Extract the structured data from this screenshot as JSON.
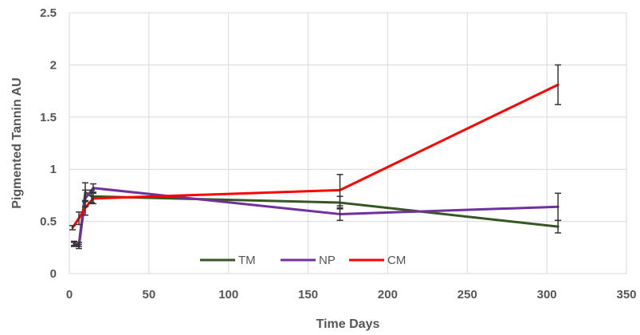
{
  "chart_data": {
    "type": "line",
    "xlabel": "Time Days",
    "ylabel": "Pigmented Tannin AU",
    "xlim": [
      0,
      350
    ],
    "ylim": [
      0,
      2.5
    ],
    "xticks": [
      0,
      50,
      100,
      150,
      200,
      250,
      300,
      350
    ],
    "yticks": [
      0,
      0.5,
      1,
      1.5,
      2,
      2.5
    ],
    "ytick_labels": [
      "0",
      "0.5",
      "1",
      "1.5",
      "2",
      "2.5"
    ],
    "grid": true,
    "legend_position": "bottom-center",
    "series": [
      {
        "name": "TM",
        "color": "#375623",
        "x": [
          3,
          6,
          10,
          14,
          170,
          307
        ],
        "y": [
          0.28,
          0.28,
          0.78,
          0.74,
          0.68,
          0.45
        ],
        "err": [
          0.02,
          0.02,
          0.09,
          0.06,
          0.06,
          0.06
        ]
      },
      {
        "name": "NP",
        "color": "#7030a0",
        "x": [
          3,
          6,
          10,
          15,
          170,
          307
        ],
        "y": [
          0.29,
          0.26,
          0.72,
          0.82,
          0.57,
          0.64
        ],
        "err": [
          0.02,
          0.02,
          0.08,
          0.04,
          0.06,
          0.13
        ]
      },
      {
        "name": "CM",
        "color": "#ff0000",
        "x": [
          2,
          6,
          10,
          15,
          170,
          307
        ],
        "y": [
          0.44,
          0.53,
          0.63,
          0.72,
          0.8,
          1.81
        ],
        "err": [
          0.02,
          0.06,
          0.07,
          0.05,
          0.15,
          0.19
        ]
      }
    ]
  }
}
